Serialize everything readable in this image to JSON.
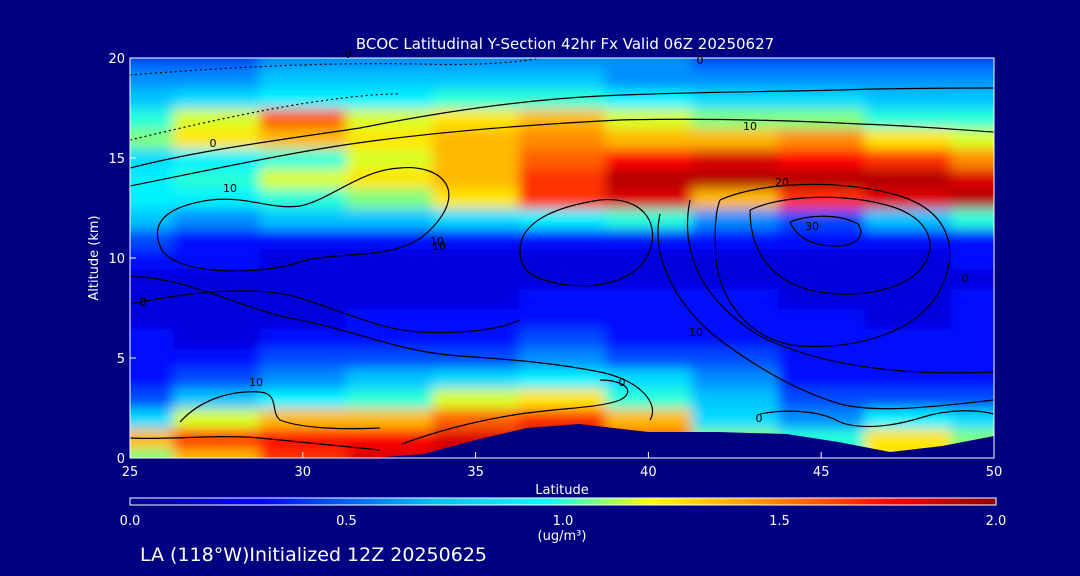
{
  "chart_data": {
    "type": "heatmap",
    "title": "BCOC Latitudinal Y-Section 42hr  Fx Valid 06Z 20250627",
    "xlabel": "Latitude",
    "ylabel": "Altitude (km)",
    "xlim": [
      25,
      50
    ],
    "ylim": [
      0,
      20
    ],
    "x_ticks": [
      "25",
      "30",
      "35",
      "40",
      "45",
      "50"
    ],
    "y_ticks": [
      "0",
      "5",
      "10",
      "15",
      "20"
    ],
    "colorbar": {
      "ticks": [
        "0.0",
        "0.5",
        "1.0",
        "1.5",
        "2.0"
      ],
      "range": [
        0,
        2
      ],
      "unit": "(ug/m³)"
    },
    "x": [
      25,
      27.5,
      30,
      32.5,
      35,
      37.5,
      40,
      42.5,
      45,
      47.5,
      50
    ],
    "y": [
      0,
      1,
      2,
      3,
      4,
      5,
      6,
      7,
      8,
      9,
      10,
      11,
      12,
      13,
      14,
      15,
      16,
      17,
      18,
      19,
      20
    ],
    "values_by_altitude": [
      [
        1.0,
        1.3,
        1.6,
        1.8,
        1.9,
        2.0,
        1.4,
        1.0,
        0.9,
        1.2,
        1.0
      ],
      [
        1.3,
        1.6,
        1.7,
        1.7,
        1.8,
        1.9,
        1.5,
        1.0,
        0.9,
        1.2,
        1.0
      ],
      [
        0.7,
        1.1,
        1.3,
        1.3,
        1.5,
        1.6,
        1.3,
        0.7,
        0.5,
        0.8,
        0.7
      ],
      [
        0.4,
        0.6,
        0.8,
        0.9,
        1.1,
        1.2,
        0.9,
        0.6,
        0.4,
        0.4,
        0.4
      ],
      [
        0.3,
        0.4,
        0.5,
        0.6,
        0.7,
        0.8,
        0.7,
        0.5,
        0.3,
        0.3,
        0.3
      ],
      [
        0.3,
        0.3,
        0.4,
        0.4,
        0.4,
        0.5,
        0.4,
        0.4,
        0.3,
        0.3,
        0.3
      ],
      [
        0.3,
        0.2,
        0.3,
        0.3,
        0.3,
        0.4,
        0.3,
        0.3,
        0.3,
        0.3,
        0.3
      ],
      [
        0.2,
        0.2,
        0.2,
        0.3,
        0.3,
        0.3,
        0.3,
        0.3,
        0.3,
        0.2,
        0.3
      ],
      [
        0.2,
        0.2,
        0.2,
        0.2,
        0.2,
        0.3,
        0.3,
        0.3,
        0.2,
        0.2,
        0.3
      ],
      [
        0.2,
        0.2,
        0.2,
        0.2,
        0.2,
        0.2,
        0.2,
        0.2,
        0.2,
        0.2,
        0.2
      ],
      [
        0.3,
        0.3,
        0.2,
        0.2,
        0.2,
        0.2,
        0.2,
        0.2,
        0.2,
        0.2,
        0.3
      ],
      [
        0.4,
        0.3,
        0.3,
        0.3,
        0.3,
        0.3,
        0.3,
        0.3,
        0.3,
        0.3,
        0.3
      ],
      [
        0.6,
        0.5,
        0.6,
        0.6,
        0.7,
        0.8,
        0.9,
        0.5,
        0.4,
        0.6,
        0.9
      ],
      [
        0.8,
        0.8,
        0.9,
        1.0,
        1.2,
        1.6,
        1.8,
        1.3,
        1.6,
        1.8,
        1.9
      ],
      [
        0.8,
        0.9,
        1.1,
        1.2,
        1.3,
        1.6,
        1.9,
        1.9,
        1.9,
        1.9,
        1.8
      ],
      [
        0.7,
        0.8,
        0.9,
        1.1,
        1.3,
        1.5,
        1.7,
        1.8,
        1.7,
        1.6,
        1.4
      ],
      [
        1.0,
        1.2,
        1.3,
        1.2,
        1.3,
        1.4,
        1.3,
        1.3,
        1.4,
        1.2,
        1.1
      ],
      [
        0.9,
        1.1,
        1.5,
        1.1,
        1.2,
        1.3,
        1.1,
        1.0,
        1.0,
        0.9,
        0.9
      ],
      [
        0.6,
        0.7,
        0.8,
        0.8,
        0.9,
        0.9,
        0.8,
        0.7,
        0.7,
        0.6,
        0.6
      ],
      [
        0.5,
        0.5,
        0.6,
        0.6,
        0.6,
        0.6,
        0.5,
        0.5,
        0.5,
        0.5,
        0.5
      ],
      [
        0.4,
        0.4,
        0.5,
        0.5,
        0.5,
        0.5,
        0.5,
        0.4,
        0.4,
        0.4,
        0.4
      ]
    ],
    "terrain": {
      "lat": [
        25,
        32,
        33.5,
        35,
        36.5,
        38,
        40,
        42,
        44,
        45.5,
        47,
        48.5,
        50
      ],
      "altitude_km": [
        0,
        0,
        0.2,
        0.9,
        1.5,
        1.7,
        1.3,
        1.3,
        1.2,
        0.8,
        0.3,
        0.6,
        1.1
      ]
    },
    "contour_labels": [
      "0",
      "10",
      "0",
      "10",
      "10",
      "0",
      "10",
      "20",
      "30",
      "0",
      "10",
      "0",
      "0",
      "10",
      "0",
      "0"
    ],
    "grid": false,
    "colormap": [
      "#00008b",
      "#0000ff",
      "#00bfff",
      "#00ffff",
      "#ffff00",
      "#ff8000",
      "#ff0000",
      "#8b0000"
    ]
  },
  "footer": {
    "text": "LA (118°W)Initialized 12Z 20250625"
  },
  "colors": {
    "background": "#000080",
    "text": "#ffffff",
    "terrain": "#000080"
  }
}
